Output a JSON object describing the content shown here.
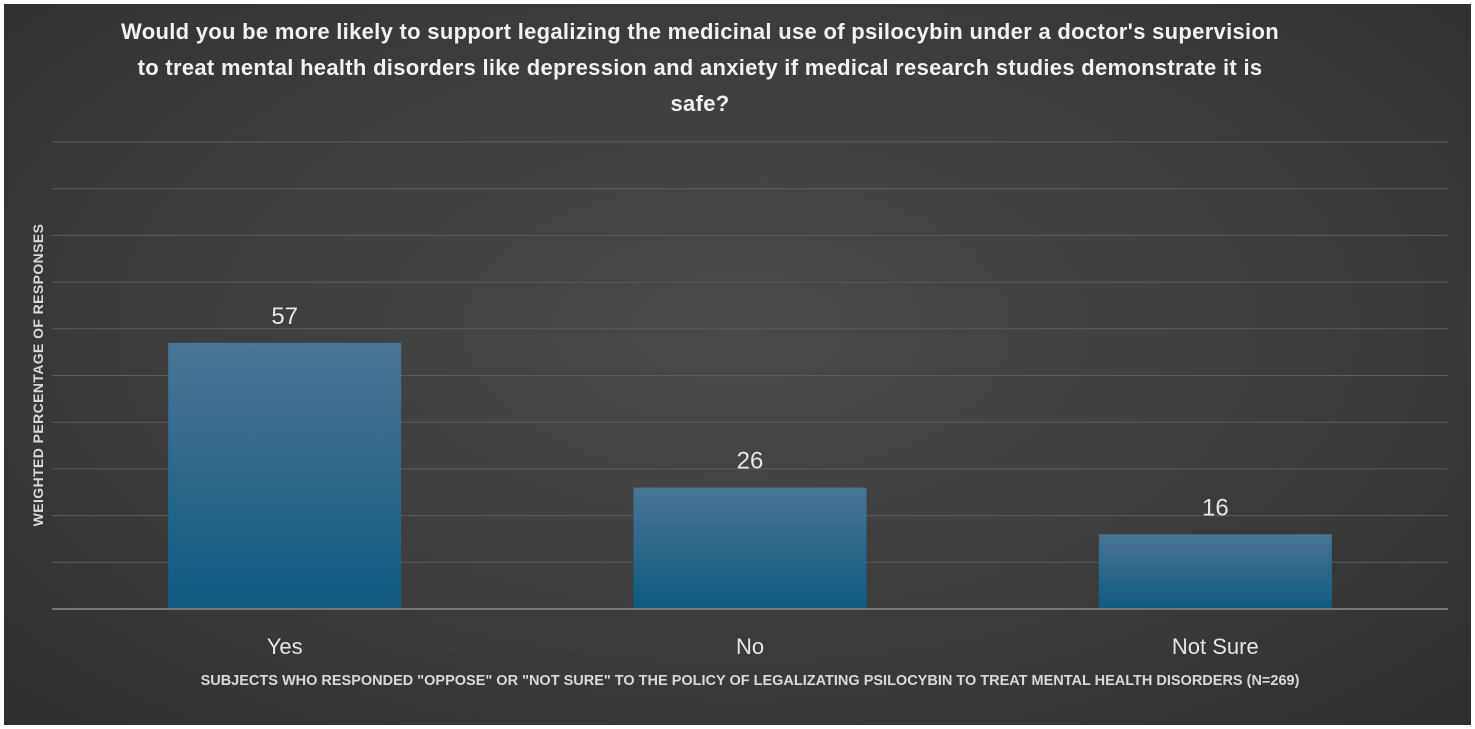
{
  "chart_data": {
    "type": "bar",
    "title": "Would you be more likely to support legalizing the medicinal use of psilocybin under a doctor's supervision to treat mental health disorders like depression and anxiety if medical research studies demonstrate it is safe?",
    "xlabel": "SUBJECTS WHO RESPONDED \"OPPOSE\" OR \"NOT SURE\" TO THE POLICY OF LEGALIZATING PSILOCYBIN TO TREAT MENTAL HEALTH DISORDERS (N=269)",
    "ylabel": "WEIGHTED PERCENTAGE OF RESPONSES",
    "categories": [
      "Yes",
      "No",
      "Not Sure"
    ],
    "values": [
      57,
      26,
      16
    ],
    "data_labels": [
      "57",
      "26",
      "16"
    ],
    "ylim": [
      0,
      100
    ],
    "grid": true,
    "legend": "none",
    "colors": {
      "bar_top": "#4a7494",
      "bar_bottom": "#0f5b82",
      "gridline": "#5c5c5c",
      "axis": "#8c8c8c"
    }
  }
}
